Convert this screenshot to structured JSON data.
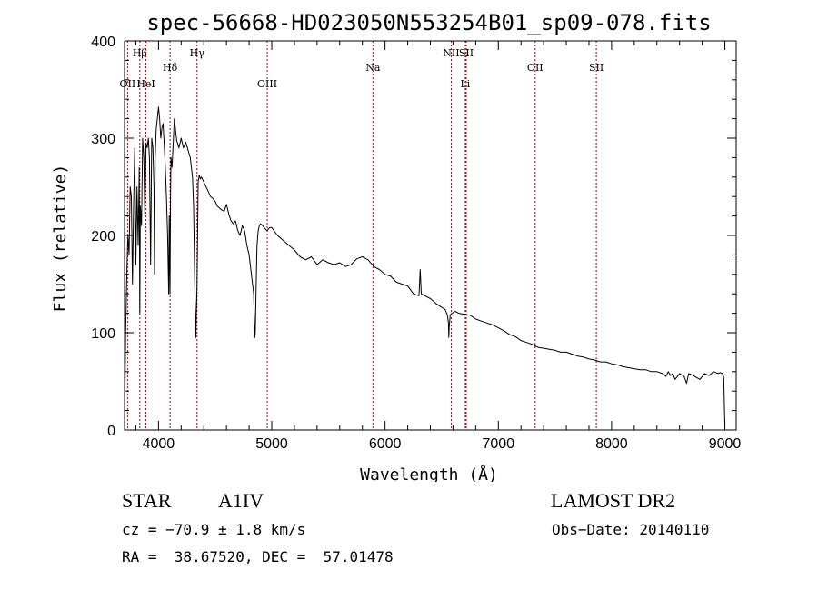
{
  "chart_data": {
    "type": "line",
    "title": "spec-56668-HD023050N553254B01_sp09-078.fits",
    "xlabel": "Wavelength (Å)",
    "ylabel": "Flux (relative)",
    "xlim": [
      3700,
      9100
    ],
    "ylim": [
      0,
      400
    ],
    "xticks": [
      "4000",
      "5000",
      "6000",
      "7000",
      "8000",
      "9000"
    ],
    "yticks": [
      "0",
      "100",
      "200",
      "300",
      "400"
    ],
    "grid": false,
    "series": [
      {
        "x": [
          3700,
          3710,
          3720,
          3730,
          3740,
          3750,
          3760,
          3770,
          3780,
          3790,
          3800,
          3810,
          3820,
          3830,
          3835,
          3840,
          3850,
          3860,
          3870,
          3880,
          3890,
          3900,
          3910,
          3920,
          3930,
          3940,
          3950,
          3960,
          3965,
          3970,
          3980,
          3990,
          4000,
          4010,
          4020,
          4030,
          4040,
          4050,
          4060,
          4070,
          4080,
          4090,
          4095,
          4101,
          4106,
          4110,
          4120,
          4140,
          4160,
          4180,
          4200,
          4220,
          4240,
          4260,
          4280,
          4300,
          4310,
          4320,
          4330,
          4335,
          4340,
          4345,
          4350,
          4360,
          4370,
          4380,
          4400,
          4420,
          4440,
          4460,
          4480,
          4500,
          4520,
          4540,
          4560,
          4580,
          4600,
          4620,
          4640,
          4660,
          4680,
          4700,
          4720,
          4740,
          4760,
          4780,
          4800,
          4820,
          4840,
          4850,
          4855,
          4861,
          4866,
          4870,
          4880,
          4890,
          4900,
          4920,
          4940,
          4960,
          4980,
          5000,
          5050,
          5100,
          5150,
          5200,
          5250,
          5300,
          5350,
          5400,
          5450,
          5500,
          5550,
          5600,
          5650,
          5700,
          5750,
          5800,
          5850,
          5900,
          5950,
          6000,
          6050,
          6100,
          6150,
          6200,
          6250,
          6300,
          6310,
          6320,
          6350,
          6400,
          6450,
          6500,
          6530,
          6550,
          6560,
          6563,
          6566,
          6575,
          6590,
          6620,
          6650,
          6700,
          6750,
          6800,
          6850,
          6900,
          6950,
          7000,
          7050,
          7100,
          7150,
          7200,
          7250,
          7300,
          7350,
          7400,
          7450,
          7500,
          7550,
          7600,
          7650,
          7700,
          7750,
          7800,
          7850,
          7900,
          7950,
          8000,
          8050,
          8100,
          8150,
          8200,
          8250,
          8300,
          8350,
          8400,
          8450,
          8480,
          8500,
          8520,
          8540,
          8560,
          8600,
          8640,
          8662,
          8680,
          8720,
          8780,
          8820,
          8860,
          8900,
          8940,
          8960,
          8980,
          8990,
          8995,
          9000
        ],
        "y": [
          0,
          100,
          160,
          200,
          180,
          250,
          240,
          150,
          230,
          290,
          170,
          250,
          190,
          270,
          120,
          230,
          210,
          300,
          280,
          220,
          295,
          290,
          300,
          280,
          170,
          300,
          290,
          250,
          160,
          280,
          310,
          320,
          332,
          320,
          300,
          310,
          315,
          295,
          270,
          240,
          200,
          140,
          220,
          140,
          240,
          280,
          270,
          320,
          298,
          290,
          300,
          290,
          296,
          288,
          280,
          260,
          230,
          150,
          95,
          120,
          150,
          200,
          255,
          262,
          258,
          260,
          255,
          250,
          245,
          240,
          238,
          235,
          230,
          228,
          226,
          225,
          232,
          222,
          215,
          212,
          215,
          205,
          200,
          210,
          205,
          190,
          180,
          160,
          140,
          95,
          100,
          140,
          170,
          190,
          205,
          210,
          212,
          210,
          207,
          205,
          208,
          208,
          200,
          195,
          190,
          185,
          178,
          175,
          178,
          170,
          175,
          172,
          170,
          172,
          168,
          170,
          176,
          178,
          175,
          168,
          165,
          160,
          158,
          152,
          150,
          148,
          140,
          138,
          165,
          140,
          138,
          135,
          130,
          126,
          124,
          118,
          110,
          95,
          105,
          118,
          120,
          122,
          120,
          119,
          118,
          114,
          112,
          110,
          108,
          105,
          102,
          98,
          96,
          92,
          90,
          88,
          85,
          84,
          83,
          82,
          80,
          80,
          78,
          76,
          75,
          73,
          72,
          70,
          70,
          68,
          67,
          65,
          64,
          63,
          62,
          62,
          60,
          60,
          58,
          55,
          60,
          56,
          58,
          52,
          58,
          55,
          48,
          58,
          56,
          52,
          58,
          56,
          60,
          58,
          59,
          58,
          54,
          30,
          5
        ]
      }
    ],
    "line_markers": [
      {
        "label": "Hβ",
        "x": 3835,
        "row": 1
      },
      {
        "label": "OII",
        "x": 3727,
        "row": 3
      },
      {
        "label": "HeI",
        "x": 3889,
        "row": 3
      },
      {
        "label": "Hδ",
        "x": 4102,
        "row": 2
      },
      {
        "label": "Hγ",
        "x": 4340,
        "row": 1
      },
      {
        "label": "OIII",
        "x": 4960,
        "row": 3
      },
      {
        "label": "Na",
        "x": 5893,
        "row": 2
      },
      {
        "label": "NII",
        "x": 6584,
        "row": 1
      },
      {
        "label": "SII",
        "x": 6717,
        "row": 1
      },
      {
        "label": "Li",
        "x": 6708,
        "row": 3
      },
      {
        "label": "OII",
        "x": 7325,
        "row": 2
      },
      {
        "label": "SII",
        "x": 7865,
        "row": 2
      }
    ]
  },
  "info": {
    "class_left": "STAR",
    "class_right": "A1IV",
    "survey": "LAMOST DR2",
    "cz": "cz = −70.9 ± 1.8 km/s",
    "obs_date": "Obs−Date: 20140110",
    "coords": "RA =  38.67520, DEC =  57.01478"
  },
  "colors": {
    "spectrum": "#000000",
    "marker_line": "#aa0000",
    "axis": "#000000"
  }
}
